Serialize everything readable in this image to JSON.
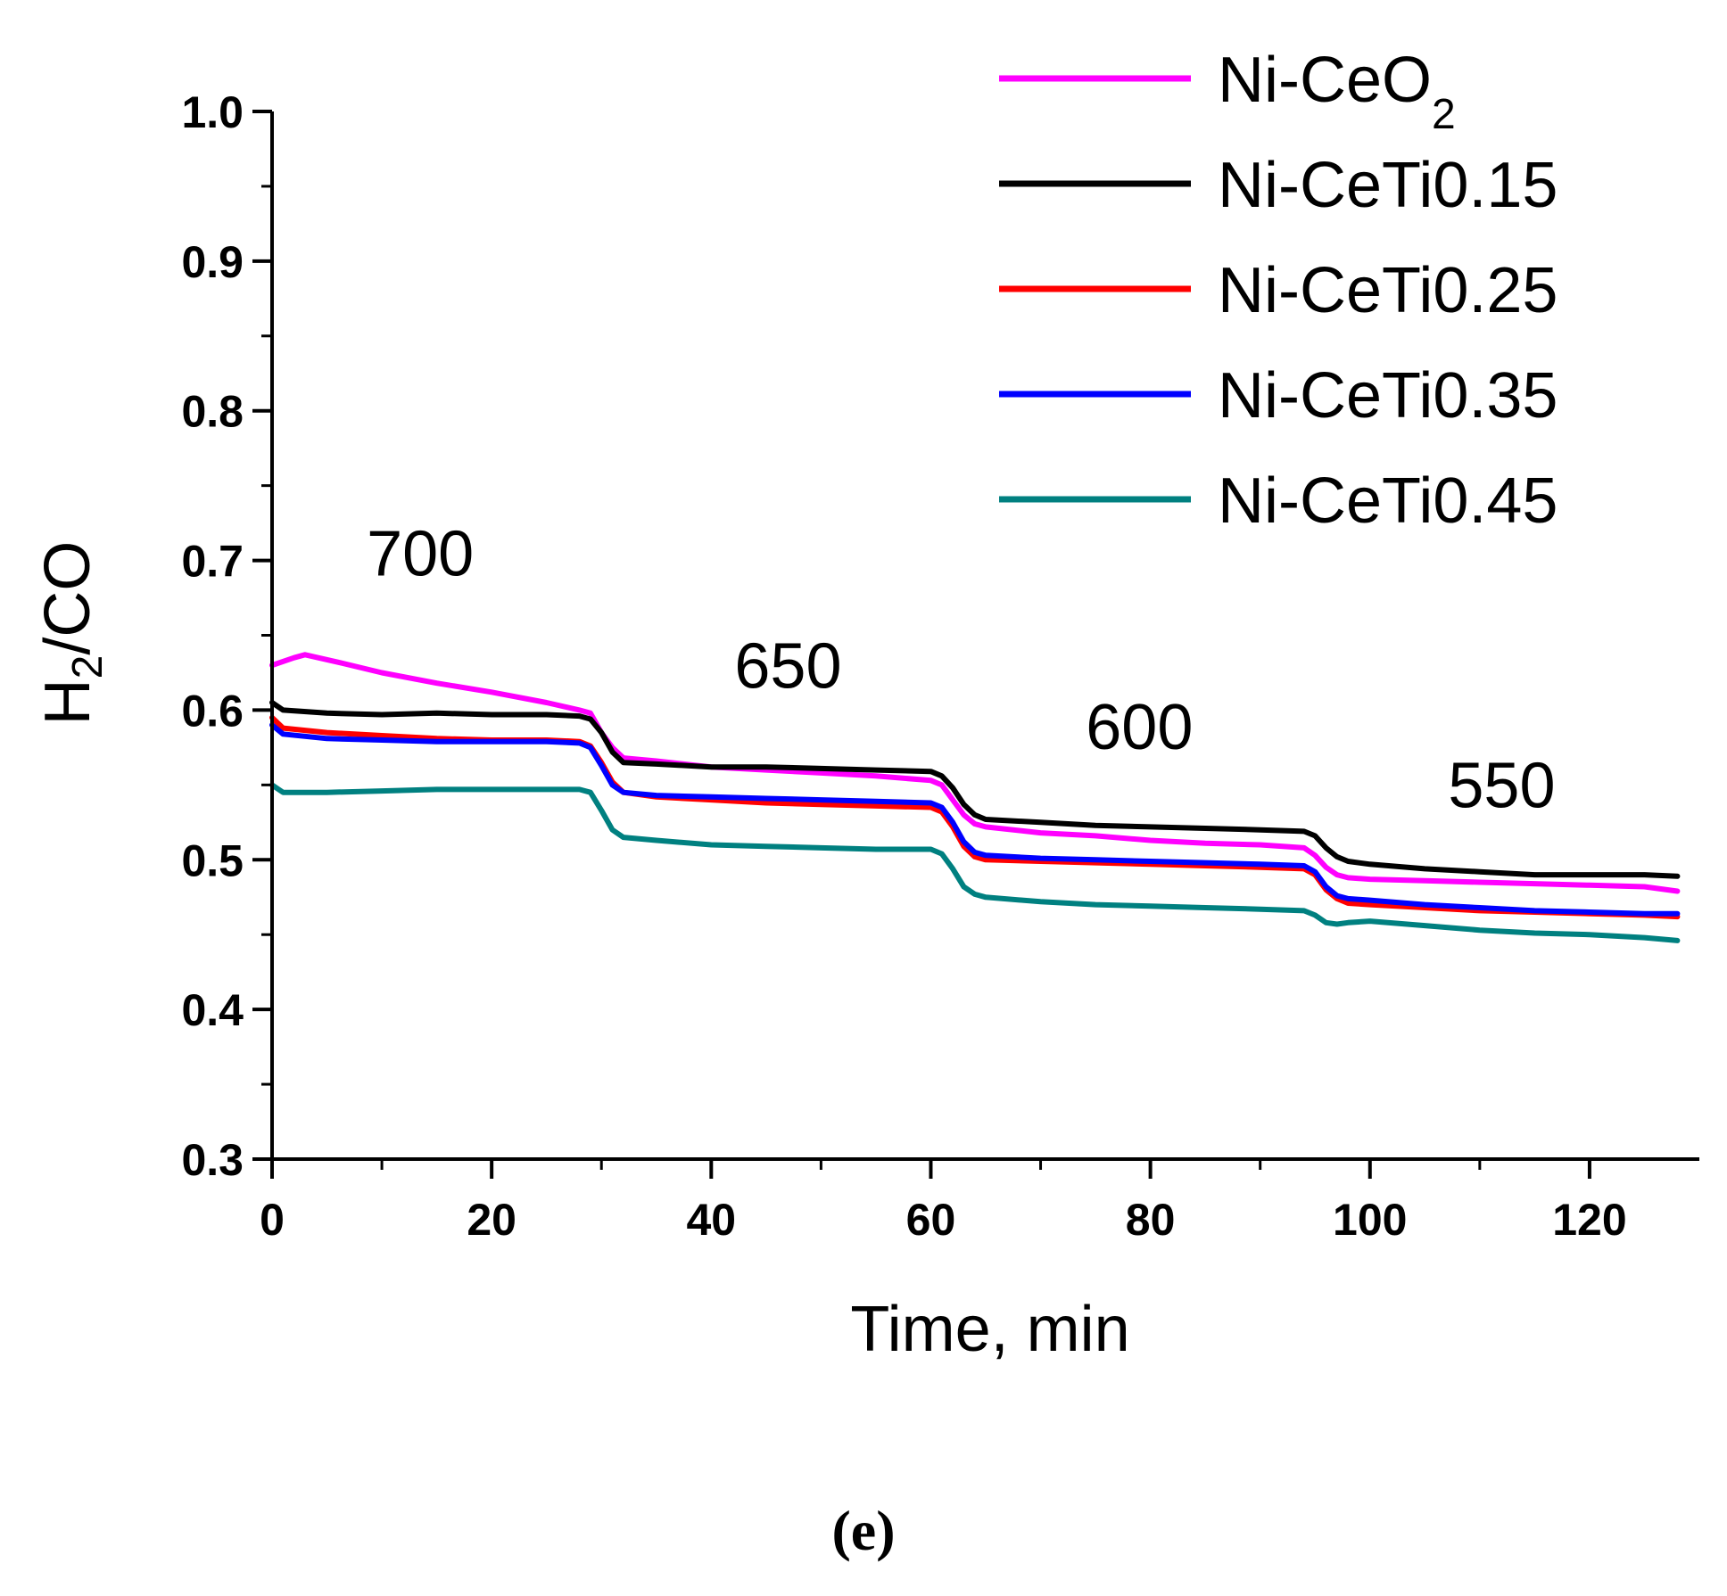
{
  "chart_data": {
    "type": "line",
    "xlabel": "Time, min",
    "ylabel_main": "H",
    "ylabel_sub": "2",
    "ylabel_rest": "/CO",
    "xlim": [
      0,
      130
    ],
    "ylim": [
      0.3,
      1.0
    ],
    "xticks": [
      0,
      20,
      40,
      60,
      80,
      100,
      120
    ],
    "xtick_labels": [
      "0",
      "20",
      "40",
      "60",
      "80",
      "100",
      "120"
    ],
    "yticks": [
      0.3,
      0.4,
      0.5,
      0.6,
      0.7,
      0.8,
      0.9,
      1.0
    ],
    "ytick_labels": [
      "0.3",
      "0.4",
      "0.5",
      "0.6",
      "0.7",
      "0.8",
      "0.9",
      "1.0"
    ],
    "grid": false,
    "legend_position": "top-right",
    "annotations": [
      {
        "text": "700",
        "x": 13.5,
        "y": 0.69
      },
      {
        "text": "650",
        "x": 47,
        "y": 0.615
      },
      {
        "text": "600",
        "x": 79,
        "y": 0.574
      },
      {
        "text": "550",
        "x": 112,
        "y": 0.535
      }
    ],
    "panel_label": "(e)",
    "series": [
      {
        "name_main": "Ni-CeO",
        "name_sub": "2",
        "color": "#ff00ff",
        "x": [
          0,
          2,
          3,
          6,
          10,
          15,
          20,
          25,
          28,
          29,
          30,
          31,
          32,
          35,
          40,
          45,
          50,
          55,
          60,
          61,
          62,
          63,
          64,
          65,
          70,
          75,
          80,
          85,
          90,
          94,
          95,
          96,
          97,
          98,
          100,
          105,
          110,
          115,
          120,
          125,
          128
        ],
        "y": [
          0.63,
          0.635,
          0.637,
          0.632,
          0.625,
          0.618,
          0.612,
          0.605,
          0.6,
          0.598,
          0.585,
          0.575,
          0.568,
          0.566,
          0.562,
          0.56,
          0.558,
          0.556,
          0.553,
          0.55,
          0.54,
          0.53,
          0.524,
          0.522,
          0.518,
          0.516,
          0.513,
          0.511,
          0.51,
          0.508,
          0.503,
          0.495,
          0.49,
          0.488,
          0.487,
          0.486,
          0.485,
          0.484,
          0.483,
          0.482,
          0.479
        ]
      },
      {
        "name_main": "Ni-CeTi0.15",
        "name_sub": "",
        "color": "#000000",
        "x": [
          0,
          1,
          5,
          10,
          15,
          20,
          25,
          28,
          29,
          30,
          31,
          32,
          35,
          40,
          45,
          50,
          55,
          60,
          61,
          62,
          63,
          64,
          65,
          70,
          75,
          80,
          85,
          90,
          94,
          95,
          96,
          97,
          98,
          100,
          105,
          110,
          115,
          120,
          125,
          128
        ],
        "y": [
          0.605,
          0.6,
          0.598,
          0.597,
          0.598,
          0.597,
          0.597,
          0.596,
          0.594,
          0.585,
          0.572,
          0.565,
          0.564,
          0.562,
          0.562,
          0.561,
          0.56,
          0.559,
          0.556,
          0.548,
          0.537,
          0.53,
          0.527,
          0.525,
          0.523,
          0.522,
          0.521,
          0.52,
          0.519,
          0.516,
          0.508,
          0.502,
          0.499,
          0.497,
          0.494,
          0.492,
          0.49,
          0.49,
          0.49,
          0.489
        ]
      },
      {
        "name_main": "Ni-CeTi0.25",
        "name_sub": "",
        "color": "#ff0000",
        "x": [
          0,
          1,
          5,
          10,
          15,
          20,
          25,
          28,
          29,
          30,
          31,
          32,
          35,
          40,
          45,
          50,
          55,
          60,
          61,
          62,
          63,
          64,
          65,
          70,
          75,
          80,
          85,
          90,
          94,
          95,
          96,
          97,
          98,
          100,
          105,
          110,
          115,
          120,
          125,
          128
        ],
        "y": [
          0.595,
          0.588,
          0.585,
          0.583,
          0.581,
          0.58,
          0.58,
          0.579,
          0.576,
          0.565,
          0.552,
          0.545,
          0.542,
          0.54,
          0.538,
          0.537,
          0.536,
          0.535,
          0.532,
          0.522,
          0.509,
          0.502,
          0.5,
          0.499,
          0.498,
          0.497,
          0.496,
          0.495,
          0.494,
          0.49,
          0.48,
          0.474,
          0.471,
          0.47,
          0.468,
          0.466,
          0.465,
          0.464,
          0.463,
          0.462
        ]
      },
      {
        "name_main": "Ni-CeTi0.35",
        "name_sub": "",
        "color": "#0000ff",
        "x": [
          0,
          1,
          5,
          10,
          15,
          20,
          25,
          28,
          29,
          30,
          31,
          32,
          35,
          40,
          45,
          50,
          55,
          60,
          61,
          62,
          63,
          64,
          65,
          70,
          75,
          80,
          85,
          90,
          94,
          95,
          96,
          97,
          98,
          100,
          105,
          110,
          115,
          120,
          125,
          128
        ],
        "y": [
          0.59,
          0.584,
          0.581,
          0.58,
          0.579,
          0.579,
          0.579,
          0.578,
          0.575,
          0.563,
          0.55,
          0.545,
          0.543,
          0.542,
          0.541,
          0.54,
          0.539,
          0.538,
          0.535,
          0.525,
          0.512,
          0.505,
          0.503,
          0.501,
          0.5,
          0.499,
          0.498,
          0.497,
          0.496,
          0.492,
          0.482,
          0.476,
          0.474,
          0.473,
          0.47,
          0.468,
          0.466,
          0.465,
          0.464,
          0.464
        ]
      },
      {
        "name_main": "Ni-CeTi0.45",
        "name_sub": "",
        "color": "#008080",
        "x": [
          0,
          1,
          5,
          10,
          15,
          20,
          25,
          28,
          29,
          30,
          31,
          32,
          35,
          40,
          45,
          50,
          55,
          60,
          61,
          62,
          63,
          64,
          65,
          70,
          75,
          80,
          85,
          90,
          94,
          95,
          96,
          97,
          98,
          100,
          105,
          110,
          115,
          120,
          125,
          128
        ],
        "y": [
          0.55,
          0.545,
          0.545,
          0.546,
          0.547,
          0.547,
          0.547,
          0.547,
          0.545,
          0.533,
          0.52,
          0.515,
          0.513,
          0.51,
          0.509,
          0.508,
          0.507,
          0.507,
          0.504,
          0.494,
          0.482,
          0.477,
          0.475,
          0.472,
          0.47,
          0.469,
          0.468,
          0.467,
          0.466,
          0.463,
          0.458,
          0.457,
          0.458,
          0.459,
          0.456,
          0.453,
          0.451,
          0.45,
          0.448,
          0.446
        ]
      }
    ]
  }
}
